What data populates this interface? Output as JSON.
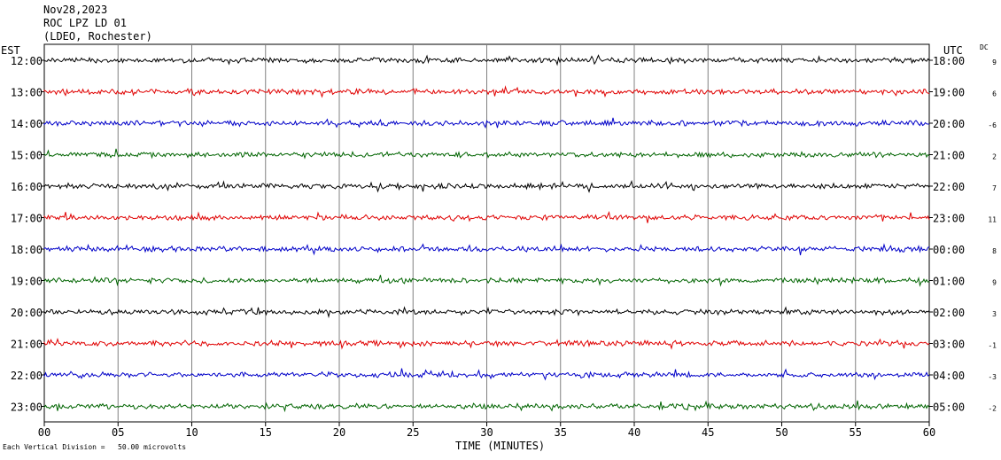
{
  "header": {
    "date": "Nov28,2023",
    "station": "ROC LPZ LD 01",
    "network": "(LDEO, Rochester)"
  },
  "labels": {
    "left_tz": "EST",
    "right_tz": "UTC",
    "dc": "DC"
  },
  "footnote": "Each Vertical Division =   50.00 microvolts",
  "chart_data": {
    "type": "line",
    "xlabel": "TIME (MINUTES)",
    "xlim": [
      0,
      60
    ],
    "x_ticks": [
      "00",
      "05",
      "10",
      "15",
      "20",
      "25",
      "30",
      "35",
      "40",
      "45",
      "50",
      "55",
      "60"
    ],
    "colors": [
      "#000000",
      "#e00000",
      "#0000c8",
      "#006400"
    ],
    "rows": [
      {
        "est": "12:00",
        "utc": "18:00",
        "dc": "9"
      },
      {
        "est": "13:00",
        "utc": "19:00",
        "dc": "6"
      },
      {
        "est": "14:00",
        "utc": "20:00",
        "dc": "-6"
      },
      {
        "est": "15:00",
        "utc": "21:00",
        "dc": "2"
      },
      {
        "est": "16:00",
        "utc": "22:00",
        "dc": "7"
      },
      {
        "est": "17:00",
        "utc": "23:00",
        "dc": "11"
      },
      {
        "est": "18:00",
        "utc": "00:00",
        "dc": "8"
      },
      {
        "est": "19:00",
        "utc": "01:00",
        "dc": "9"
      },
      {
        "est": "20:00",
        "utc": "02:00",
        "dc": "3"
      },
      {
        "est": "21:00",
        "utc": "03:00",
        "dc": "-1"
      },
      {
        "est": "22:00",
        "utc": "04:00",
        "dc": "-3"
      },
      {
        "est": "23:00",
        "utc": "05:00",
        "dc": "-2"
      }
    ]
  }
}
